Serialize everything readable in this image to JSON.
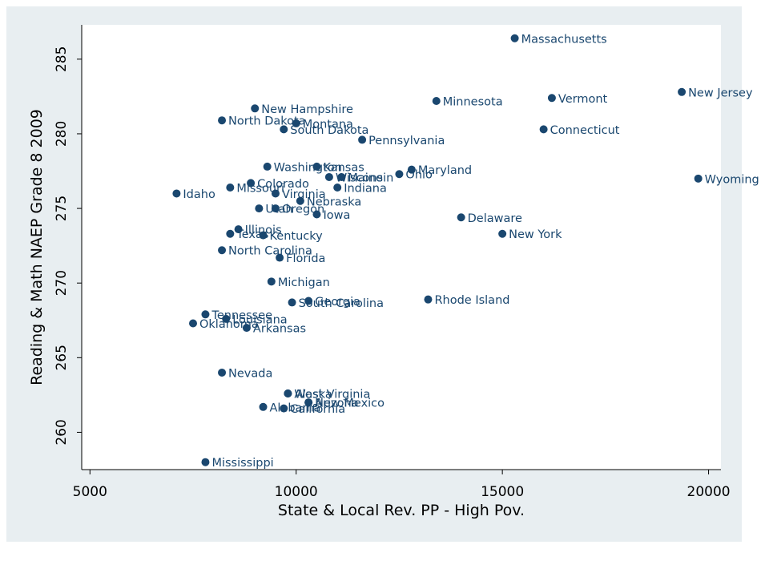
{
  "colors": {
    "outer_bg": "#e8eef1",
    "plot_bg": "#ffffff",
    "marker": "#1a476f",
    "text": "#000000",
    "axis": "#000000"
  },
  "chart_data": {
    "type": "scatter",
    "title": "",
    "xlabel": "State & Local Rev. PP - High Pov.",
    "ylabel": "Reading & Math NAEP Grade 8 2009",
    "xlim": [
      4800,
      20300
    ],
    "ylim": [
      257.5,
      287.3
    ],
    "xticks": [
      5000,
      10000,
      15000,
      20000
    ],
    "yticks": [
      260,
      265,
      270,
      275,
      280,
      285
    ],
    "grid": false,
    "points": [
      {
        "label": "Massachusetts",
        "x": 15300,
        "y": 286.4
      },
      {
        "label": "New Jersey",
        "x": 19350,
        "y": 282.8
      },
      {
        "label": "Vermont",
        "x": 16200,
        "y": 282.4
      },
      {
        "label": "Minnesota",
        "x": 13400,
        "y": 282.2
      },
      {
        "label": "New Hampshire",
        "x": 9000,
        "y": 281.7
      },
      {
        "label": "North Dakota",
        "x": 8200,
        "y": 280.9
      },
      {
        "label": "Montana",
        "x": 10000,
        "y": 280.7
      },
      {
        "label": "South Dakota",
        "x": 9700,
        "y": 280.3
      },
      {
        "label": "Connecticut",
        "x": 16000,
        "y": 280.3
      },
      {
        "label": "Pennsylvania",
        "x": 11600,
        "y": 279.6
      },
      {
        "label": "Washington",
        "x": 9300,
        "y": 277.8
      },
      {
        "label": "Kansas",
        "x": 10500,
        "y": 277.8
      },
      {
        "label": "Maryland",
        "x": 12800,
        "y": 277.6
      },
      {
        "label": "Ohio",
        "x": 12500,
        "y": 277.3
      },
      {
        "label": "Maine",
        "x": 11100,
        "y": 277.1
      },
      {
        "label": "Wisconsin",
        "x": 10800,
        "y": 277.1
      },
      {
        "label": "Wyoming",
        "x": 19750,
        "y": 277.0
      },
      {
        "label": "Colorado",
        "x": 8900,
        "y": 276.7
      },
      {
        "label": "Indiana",
        "x": 11000,
        "y": 276.4
      },
      {
        "label": "Missouri",
        "x": 8400,
        "y": 276.4
      },
      {
        "label": "Idaho",
        "x": 7100,
        "y": 276.0
      },
      {
        "label": "Virginia",
        "x": 9500,
        "y": 276.0
      },
      {
        "label": "Nebraska",
        "x": 10100,
        "y": 275.5
      },
      {
        "label": "Utah",
        "x": 9100,
        "y": 275.0
      },
      {
        "label": "Oregon",
        "x": 9500,
        "y": 275.0
      },
      {
        "label": "Iowa",
        "x": 10500,
        "y": 274.6
      },
      {
        "label": "Delaware",
        "x": 14000,
        "y": 274.4
      },
      {
        "label": "Illinois",
        "x": 8600,
        "y": 273.6
      },
      {
        "label": "Texas",
        "x": 8400,
        "y": 273.3
      },
      {
        "label": "Kentucky",
        "x": 9200,
        "y": 273.2
      },
      {
        "label": "New York",
        "x": 15000,
        "y": 273.3
      },
      {
        "label": "North Carolina",
        "x": 8200,
        "y": 272.2
      },
      {
        "label": "Florida",
        "x": 9600,
        "y": 271.7
      },
      {
        "label": "Michigan",
        "x": 9400,
        "y": 270.1
      },
      {
        "label": "Rhode Island",
        "x": 13200,
        "y": 268.9
      },
      {
        "label": "Georgia",
        "x": 10300,
        "y": 268.8
      },
      {
        "label": "South Carolina",
        "x": 9900,
        "y": 268.7
      },
      {
        "label": "Tennessee",
        "x": 7800,
        "y": 267.9
      },
      {
        "label": "Louisiana",
        "x": 8300,
        "y": 267.6
      },
      {
        "label": "Oklahoma",
        "x": 7500,
        "y": 267.3
      },
      {
        "label": "Arkansas",
        "x": 8800,
        "y": 267.0
      },
      {
        "label": "Nevada",
        "x": 8200,
        "y": 264.0
      },
      {
        "label": "West Virginia",
        "x": 9800,
        "y": 262.6
      },
      {
        "label": "Alaska",
        "x": 9800,
        "y": 262.6
      },
      {
        "label": "Arizona",
        "x": 10300,
        "y": 262.0
      },
      {
        "label": "New Mexico",
        "x": 10300,
        "y": 262.0
      },
      {
        "label": "Alabama",
        "x": 9200,
        "y": 261.7
      },
      {
        "label": "California",
        "x": 9700,
        "y": 261.6
      },
      {
        "label": "Mississippi",
        "x": 7800,
        "y": 258.0
      }
    ]
  }
}
